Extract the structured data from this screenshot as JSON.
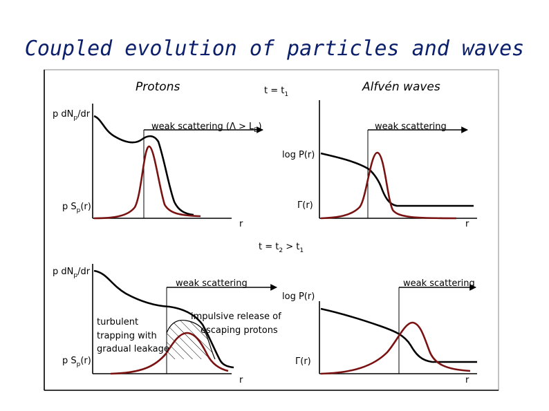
{
  "title": "Coupled evolution of particles and waves",
  "top": {
    "left_heading": "Protons",
    "right_heading": "Alfvén waves",
    "time": {
      "pre": "t = t",
      "sub": "1"
    },
    "y_label_upper": {
      "pre": "p dN",
      "sub": "p",
      "post": "/dr"
    },
    "y_label_lower": {
      "pre": "p S",
      "sub": "p",
      "post": "(r)"
    },
    "left_scatter": {
      "pre": "weak scattering (Λ > L",
      "sub": "B",
      "post": ")"
    },
    "right_scatter": "weak scattering",
    "logP": "log P(r)",
    "gamma": "Γ(r)",
    "x_left": "r",
    "x_right": "r"
  },
  "bottom": {
    "time": {
      "pre": "t = t",
      "sub1": "2",
      "mid": " > t",
      "sub2": "1"
    },
    "y_label_upper": {
      "pre": "p dN",
      "sub": "p",
      "post": "/dr"
    },
    "y_label_lower": {
      "pre": "p S",
      "sub": "p",
      "post": "(r)"
    },
    "left_scatter": "weak scattering",
    "right_scatter": "weak scattering",
    "logP": "log P(r)",
    "gamma": "Γ(r)",
    "turbulent": [
      "turbulent",
      "trapping with",
      "gradual leakage"
    ],
    "impulsive": [
      "impulsive release of",
      "escaping protons"
    ],
    "x_left": "r",
    "x_right": "r"
  },
  "colors": {
    "title": "#0b1f6b",
    "red_curve": "#7a1212",
    "black_curve": "#000000",
    "frame": "#9a9a9a"
  }
}
